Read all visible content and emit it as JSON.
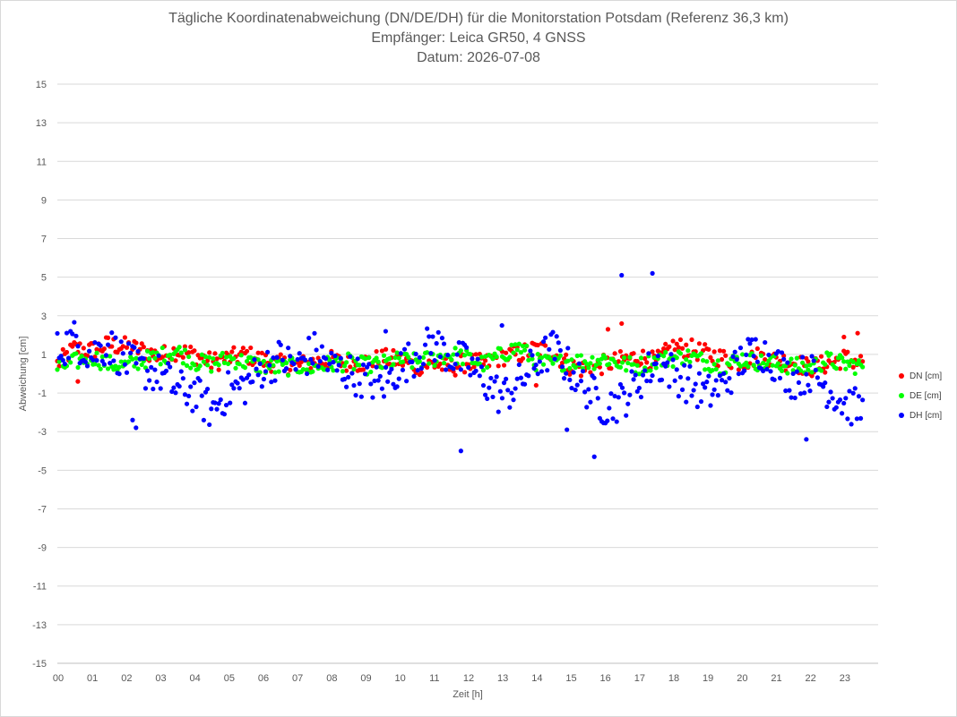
{
  "chart_data": {
    "type": "scatter",
    "title": "Tägliche Koordinatenabweichung (DN/DE/DH) für die Monitorstation Potsdam (Referenz 36,3 km)",
    "subtitle": "Empfänger: Leica GR50, 4 GNSS",
    "date_line": "Datum: 2026-07-08",
    "xlabel": "Zeit [h]",
    "ylabel": "Abweichung [cm]",
    "xlim": [
      0,
      24
    ],
    "ylim": [
      -15,
      15
    ],
    "x_ticks": [
      "00",
      "01",
      "02",
      "03",
      "04",
      "05",
      "06",
      "07",
      "08",
      "09",
      "10",
      "11",
      "12",
      "13",
      "14",
      "15",
      "16",
      "17",
      "18",
      "19",
      "20",
      "21",
      "22",
      "23"
    ],
    "y_ticks": [
      15,
      13,
      11,
      9,
      7,
      5,
      3,
      1,
      -1,
      -3,
      -5,
      -7,
      -9,
      -11,
      -13,
      -15
    ],
    "grid": true,
    "legend_position": "right",
    "x_step_hours": 0.5,
    "series": [
      {
        "name": "DN [cm]",
        "color": "#ff0000",
        "values": [
          0.5,
          1.3,
          1.2,
          1.5,
          1.4,
          1.2,
          0.9,
          1.2,
          1.0,
          0.6,
          0.8,
          1.0,
          0.7,
          0.5,
          0.4,
          0.6,
          0.7,
          0.5,
          0.6,
          0.8,
          0.7,
          0.4,
          0.5,
          0.3,
          0.6,
          0.5,
          0.9,
          1.0,
          1.3,
          1.1,
          0.4,
          0.2,
          0.5,
          0.7,
          0.9,
          0.6,
          1.4,
          1.3,
          1.0,
          0.8,
          0.6,
          0.9,
          0.7,
          0.6,
          0.3,
          0.5,
          0.8,
          0.6,
          1.2,
          0.8,
          0.6,
          0.5,
          0.4,
          0.9,
          1.0,
          0.7,
          0.5,
          0.6,
          0.2,
          0.4,
          0.7,
          1.0,
          1.2,
          0.8,
          0.5,
          0.9,
          0.6,
          0.4,
          0.3,
          0.5,
          0.8,
          0.6,
          1.0,
          1.5,
          0.8,
          0.5,
          0.7,
          0.9,
          1.1,
          1.2,
          1.0,
          0.6,
          0.4,
          0.8,
          1.0,
          1.1,
          0.9,
          0.6,
          0.8,
          1.0,
          0.9,
          0.7,
          0.5,
          0.6,
          0.4,
          0.5
        ]
      },
      {
        "name": "DE [cm]",
        "color": "#00ff00",
        "values": [
          0.3,
          0.6,
          0.9,
          0.5,
          0.4,
          0.7,
          0.9,
          1.2,
          0.6,
          0.5,
          0.8,
          0.6,
          0.4,
          0.3,
          0.4,
          0.3,
          0.5,
          0.6,
          0.4,
          0.5,
          0.7,
          0.6,
          0.8,
          1.0,
          0.8,
          0.5,
          1.0,
          1.4,
          0.6,
          0.5,
          0.7,
          0.6,
          0.8,
          0.5,
          0.4,
          0.7,
          0.8,
          0.9,
          0.6,
          0.4,
          0.8,
          0.6,
          0.5,
          0.4,
          0.3,
          0.7,
          0.5,
          0.4,
          0.6,
          0.8,
          0.9,
          1.0,
          0.6,
          0.7,
          0.4,
          0.3,
          0.5,
          0.6,
          0.4,
          0.2,
          0.5,
          0.9,
          1.0,
          0.8,
          1.1,
          0.6,
          0.4,
          0.5,
          0.8,
          0.9,
          0.7,
          0.5,
          0.6,
          0.8,
          0.7,
          0.6,
          0.3,
          0.5,
          0.6,
          0.7,
          0.4,
          0.5,
          0.8,
          0.6,
          0.5,
          0.2,
          0.1,
          -0.1,
          0.1,
          0.4,
          0.7,
          0.8,
          0.9,
          0.6,
          1.3,
          0.4
        ]
      },
      {
        "name": "DH [cm]",
        "color": "#0000ff",
        "values": [
          1.2,
          1.8,
          1.0,
          1.5,
          0.6,
          0.2,
          0.0,
          -0.8,
          -1.0,
          -1.9,
          -0.9,
          -0.6,
          0.3,
          0.8,
          0.4,
          1.2,
          0.4,
          0.1,
          -0.3,
          -0.6,
          0.3,
          1.0,
          1.6,
          0.9,
          0.5,
          -0.4,
          -1.2,
          -0.5,
          0.6,
          1.3,
          0.2,
          -0.8,
          -1.7,
          -1.4,
          -0.4,
          0.6,
          0.1,
          -0.6,
          -1.1,
          -0.5,
          0.7,
          1.3,
          0.6,
          -0.3,
          0.1,
          -0.7,
          -1.5,
          -1.9,
          -2.3,
          -2.1,
          -1.4,
          -0.8,
          -0.2,
          0.4,
          -1.0,
          -1.8,
          -1.2,
          -0.5,
          0.2,
          0.4,
          -0.6,
          -1.0,
          -1.5,
          -0.4,
          1.2,
          0.1,
          0.9,
          0.6,
          0.2,
          0.3,
          0.7,
          0.4,
          -1.4,
          -1.0,
          -0.7,
          -1.2,
          -1.7,
          -1.9,
          -1.0,
          -0.5,
          0.8,
          1.5,
          0.6,
          0.1,
          -0.6,
          -1.1,
          -0.3,
          -1.2,
          -1.8,
          -2.2,
          -1.5,
          -1.1,
          -0.5,
          0.1,
          1.1,
          1.6
        ]
      }
    ],
    "outliers": [
      {
        "series": "DH [cm]",
        "points": [
          [
            2.2,
            -2.4
          ],
          [
            2.3,
            -2.8
          ],
          [
            11.8,
            -4.0
          ],
          [
            14.9,
            -2.9
          ],
          [
            15.7,
            -4.3
          ],
          [
            16.5,
            5.1
          ],
          [
            17.4,
            5.2
          ],
          [
            21.9,
            -3.4
          ],
          [
            13.0,
            2.5
          ],
          [
            9.6,
            2.2
          ]
        ]
      },
      {
        "series": "DN [cm]",
        "points": [
          [
            16.5,
            2.6
          ],
          [
            16.1,
            2.3
          ],
          [
            23.0,
            1.9
          ],
          [
            23.4,
            2.1
          ],
          [
            0.6,
            -0.4
          ],
          [
            14.0,
            -0.6
          ]
        ]
      }
    ]
  }
}
